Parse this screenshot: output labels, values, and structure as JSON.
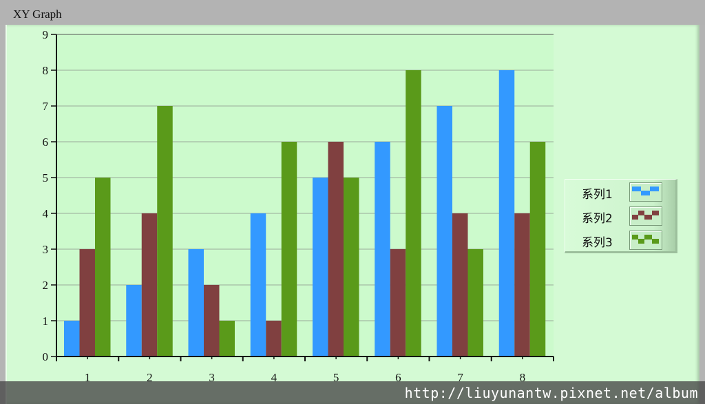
{
  "window": {
    "title": "XY Graph"
  },
  "watermark": {
    "text": "http://liuyunantw.pixnet.net/album"
  },
  "colors": {
    "series1": "#3399ff",
    "series2": "#804040",
    "series3": "#5a9a1a",
    "plot_bg": "#ccfacc",
    "panel_bg": "#d4fad4",
    "gridline": "#9aaa9a",
    "axis": "#111111"
  },
  "legend": {
    "items": [
      {
        "label": "系列1",
        "color": "#3399ff",
        "icon": "series1-swatch-icon"
      },
      {
        "label": "系列2",
        "color": "#804040",
        "icon": "series2-swatch-icon"
      },
      {
        "label": "系列3",
        "color": "#5a9a1a",
        "icon": "series3-swatch-icon"
      }
    ]
  },
  "chart_data": {
    "type": "bar",
    "categories": [
      "1",
      "2",
      "3",
      "4",
      "5",
      "6",
      "7",
      "8"
    ],
    "series": [
      {
        "name": "系列1",
        "values": [
          1,
          2,
          3,
          4,
          5,
          6,
          7,
          8
        ]
      },
      {
        "name": "系列2",
        "values": [
          3,
          4,
          2,
          1,
          6,
          3,
          4,
          4
        ]
      },
      {
        "name": "系列3",
        "values": [
          5,
          7,
          1,
          6,
          5,
          8,
          3,
          6
        ]
      }
    ],
    "y_ticks": [
      "0",
      "1",
      "2",
      "3",
      "4",
      "5",
      "6",
      "7",
      "8",
      "9"
    ],
    "ylim": [
      0,
      9
    ],
    "grid": true,
    "legend_position": "right"
  }
}
